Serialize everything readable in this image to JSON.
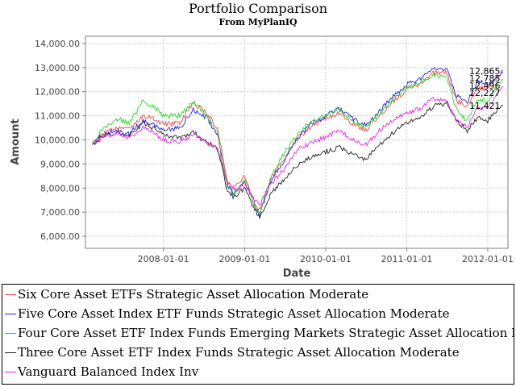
{
  "chart_data": {
    "type": "line",
    "title": "Portfolio Comparison",
    "subtitle": "From MyPlanIQ",
    "xlabel": "Date",
    "ylabel": "Amount",
    "ylim": [
      5500,
      14300
    ],
    "xlim": [
      "2007-01-15",
      "2012-04-01"
    ],
    "yticks": [
      6000,
      7000,
      8000,
      9000,
      10000,
      11000,
      12000,
      13000,
      14000
    ],
    "ytick_labels": [
      "6,000.00",
      "7,000.00",
      "8,000.00",
      "9,000.00",
      "10,000.00",
      "11,000.00",
      "12,000.00",
      "13,000.00",
      "14,000.00"
    ],
    "xticks": [
      "2008-01-01",
      "2009-01-01",
      "2010-01-01",
      "2011-01-01",
      "2012-01-01"
    ],
    "xtick_labels": [
      "2008-01-01",
      "2009-01-01",
      "2010-01-01",
      "2011-01-01",
      "2012-01-01"
    ],
    "grid": true,
    "legend_position": "bottom",
    "series": [
      {
        "name": "Six Core Asset ETFs Strategic Asset Allocation Moderate",
        "color": "#ff4444",
        "end_label": "12,865",
        "points": [
          [
            "2007-02-15",
            9800
          ],
          [
            "2007-04-01",
            10250
          ],
          [
            "2007-06-01",
            10500
          ],
          [
            "2007-08-01",
            10400
          ],
          [
            "2007-10-01",
            11000
          ],
          [
            "2007-11-15",
            10900
          ],
          [
            "2008-01-01",
            10650
          ],
          [
            "2008-03-15",
            10700
          ],
          [
            "2008-05-15",
            11550
          ],
          [
            "2008-07-15",
            11100
          ],
          [
            "2008-09-01",
            10500
          ],
          [
            "2008-10-15",
            8300
          ],
          [
            "2008-11-15",
            8000
          ],
          [
            "2009-01-01",
            8500
          ],
          [
            "2009-02-15",
            7400
          ],
          [
            "2009-03-10",
            7100
          ],
          [
            "2009-05-01",
            8400
          ],
          [
            "2009-07-01",
            9300
          ],
          [
            "2009-09-01",
            10100
          ],
          [
            "2009-11-01",
            10600
          ],
          [
            "2010-01-01",
            10900
          ],
          [
            "2010-03-01",
            11100
          ],
          [
            "2010-05-01",
            10700
          ],
          [
            "2010-07-01",
            10400
          ],
          [
            "2010-09-01",
            11000
          ],
          [
            "2010-11-01",
            11600
          ],
          [
            "2011-01-01",
            12100
          ],
          [
            "2011-03-01",
            12300
          ],
          [
            "2011-05-01",
            12800
          ],
          [
            "2011-07-01",
            12800
          ],
          [
            "2011-08-15",
            11600
          ],
          [
            "2011-10-01",
            11400
          ],
          [
            "2011-11-15",
            12200
          ],
          [
            "2012-01-01",
            12100
          ],
          [
            "2012-02-15",
            12600
          ],
          [
            "2012-03-10",
            12865
          ]
        ]
      },
      {
        "name": "Five Core Asset Index ETF Funds Strategic Asset Allocation Moderate",
        "color": "#2222ee",
        "end_label": "12,785",
        "points": [
          [
            "2007-02-15",
            9800
          ],
          [
            "2007-04-01",
            10200
          ],
          [
            "2007-06-01",
            10400
          ],
          [
            "2007-08-01",
            10250
          ],
          [
            "2007-10-01",
            10800
          ],
          [
            "2007-11-15",
            10650
          ],
          [
            "2008-01-01",
            10400
          ],
          [
            "2008-03-15",
            10500
          ],
          [
            "2008-05-15",
            11250
          ],
          [
            "2008-07-15",
            10900
          ],
          [
            "2008-09-01",
            10200
          ],
          [
            "2008-10-15",
            8100
          ],
          [
            "2008-11-15",
            7700
          ],
          [
            "2009-01-01",
            8300
          ],
          [
            "2009-02-15",
            7200
          ],
          [
            "2009-03-10",
            6900
          ],
          [
            "2009-05-01",
            8300
          ],
          [
            "2009-07-01",
            9200
          ],
          [
            "2009-09-01",
            10100
          ],
          [
            "2009-11-01",
            10700
          ],
          [
            "2010-01-01",
            11000
          ],
          [
            "2010-03-01",
            11300
          ],
          [
            "2010-05-01",
            10900
          ],
          [
            "2010-07-01",
            10600
          ],
          [
            "2010-09-01",
            11200
          ],
          [
            "2010-11-01",
            11800
          ],
          [
            "2011-01-01",
            12300
          ],
          [
            "2011-03-01",
            12500
          ],
          [
            "2011-05-01",
            13000
          ],
          [
            "2011-07-01",
            12900
          ],
          [
            "2011-08-15",
            11800
          ],
          [
            "2011-10-01",
            11600
          ],
          [
            "2011-11-15",
            12400
          ],
          [
            "2012-01-01",
            12300
          ],
          [
            "2012-02-15",
            12700
          ],
          [
            "2012-03-10",
            12785
          ]
        ]
      },
      {
        "name": "Four Core Asset  ETF Index Funds Emerging Markets Strategic Asset Allocation Moderate",
        "color": "#22dd22",
        "end_label": "12,496",
        "points": [
          [
            "2007-02-15",
            9850
          ],
          [
            "2007-04-01",
            10400
          ],
          [
            "2007-06-01",
            10900
          ],
          [
            "2007-08-01",
            10700
          ],
          [
            "2007-10-01",
            11600
          ],
          [
            "2007-11-15",
            11400
          ],
          [
            "2008-01-01",
            11000
          ],
          [
            "2008-03-15",
            11000
          ],
          [
            "2008-05-15",
            11600
          ],
          [
            "2008-07-15",
            11000
          ],
          [
            "2008-09-01",
            10300
          ],
          [
            "2008-10-15",
            8100
          ],
          [
            "2008-11-15",
            7800
          ],
          [
            "2009-01-01",
            8300
          ],
          [
            "2009-02-15",
            7300
          ],
          [
            "2009-03-10",
            7000
          ],
          [
            "2009-05-01",
            8500
          ],
          [
            "2009-07-01",
            9500
          ],
          [
            "2009-09-01",
            10300
          ],
          [
            "2009-11-01",
            10800
          ],
          [
            "2010-01-01",
            11000
          ],
          [
            "2010-03-01",
            11300
          ],
          [
            "2010-05-01",
            10800
          ],
          [
            "2010-07-01",
            10500
          ],
          [
            "2010-09-01",
            11100
          ],
          [
            "2010-11-01",
            11700
          ],
          [
            "2011-01-01",
            12200
          ],
          [
            "2011-03-01",
            12400
          ],
          [
            "2011-05-01",
            12700
          ],
          [
            "2011-07-01",
            12600
          ],
          [
            "2011-08-15",
            11200
          ],
          [
            "2011-10-01",
            10800
          ],
          [
            "2011-11-15",
            11700
          ],
          [
            "2012-01-01",
            11600
          ],
          [
            "2012-02-15",
            12300
          ],
          [
            "2012-03-10",
            12496
          ]
        ]
      },
      {
        "name": "Three Core Asset  ETF Index Funds Strategic Asset Allocation Moderate",
        "color": "#222222",
        "end_label": "11,421",
        "points": [
          [
            "2007-02-15",
            9800
          ],
          [
            "2007-04-01",
            10150
          ],
          [
            "2007-06-01",
            10300
          ],
          [
            "2007-08-01",
            10150
          ],
          [
            "2007-10-01",
            10700
          ],
          [
            "2007-11-15",
            10500
          ],
          [
            "2008-01-01",
            10200
          ],
          [
            "2008-03-15",
            10100
          ],
          [
            "2008-05-15",
            10300
          ],
          [
            "2008-07-15",
            9900
          ],
          [
            "2008-09-01",
            9600
          ],
          [
            "2008-10-15",
            7900
          ],
          [
            "2008-11-15",
            7600
          ],
          [
            "2009-01-01",
            8000
          ],
          [
            "2009-02-15",
            7100
          ],
          [
            "2009-03-10",
            6800
          ],
          [
            "2009-05-01",
            7800
          ],
          [
            "2009-07-01",
            8400
          ],
          [
            "2009-09-01",
            9000
          ],
          [
            "2009-11-01",
            9300
          ],
          [
            "2010-01-01",
            9500
          ],
          [
            "2010-03-01",
            9700
          ],
          [
            "2010-05-01",
            9400
          ],
          [
            "2010-07-01",
            9200
          ],
          [
            "2010-09-01",
            9800
          ],
          [
            "2010-11-01",
            10300
          ],
          [
            "2011-01-01",
            10700
          ],
          [
            "2011-03-01",
            10900
          ],
          [
            "2011-05-01",
            11400
          ],
          [
            "2011-07-01",
            11500
          ],
          [
            "2011-08-15",
            10800
          ],
          [
            "2011-10-01",
            10400
          ],
          [
            "2011-11-15",
            10900
          ],
          [
            "2012-01-01",
            10800
          ],
          [
            "2012-02-15",
            11300
          ],
          [
            "2012-03-10",
            11421
          ]
        ]
      },
      {
        "name": "Vanguard Balanced Index Inv",
        "color": "#ee22ee",
        "end_label": "12,227",
        "points": [
          [
            "2007-02-15",
            9800
          ],
          [
            "2007-04-01",
            10100
          ],
          [
            "2007-06-01",
            10300
          ],
          [
            "2007-08-01",
            10100
          ],
          [
            "2007-10-01",
            10500
          ],
          [
            "2007-11-15",
            10300
          ],
          [
            "2008-01-01",
            10000
          ],
          [
            "2008-03-15",
            9900
          ],
          [
            "2008-05-15",
            10200
          ],
          [
            "2008-07-15",
            9900
          ],
          [
            "2008-09-01",
            9700
          ],
          [
            "2008-10-15",
            8200
          ],
          [
            "2008-11-15",
            7900
          ],
          [
            "2009-01-01",
            8200
          ],
          [
            "2009-02-15",
            7500
          ],
          [
            "2009-03-10",
            7300
          ],
          [
            "2009-05-01",
            8200
          ],
          [
            "2009-07-01",
            8800
          ],
          [
            "2009-09-01",
            9600
          ],
          [
            "2009-11-01",
            9900
          ],
          [
            "2010-01-01",
            10100
          ],
          [
            "2010-03-01",
            10400
          ],
          [
            "2010-05-01",
            10000
          ],
          [
            "2010-07-01",
            9800
          ],
          [
            "2010-09-01",
            10400
          ],
          [
            "2010-11-01",
            10800
          ],
          [
            "2011-01-01",
            11100
          ],
          [
            "2011-03-01",
            11300
          ],
          [
            "2011-05-01",
            11700
          ],
          [
            "2011-07-01",
            11600
          ],
          [
            "2011-08-15",
            10800
          ],
          [
            "2011-10-01",
            10500
          ],
          [
            "2011-11-15",
            11300
          ],
          [
            "2012-01-01",
            11300
          ],
          [
            "2012-02-15",
            11900
          ],
          [
            "2012-03-10",
            12227
          ]
        ]
      }
    ]
  }
}
